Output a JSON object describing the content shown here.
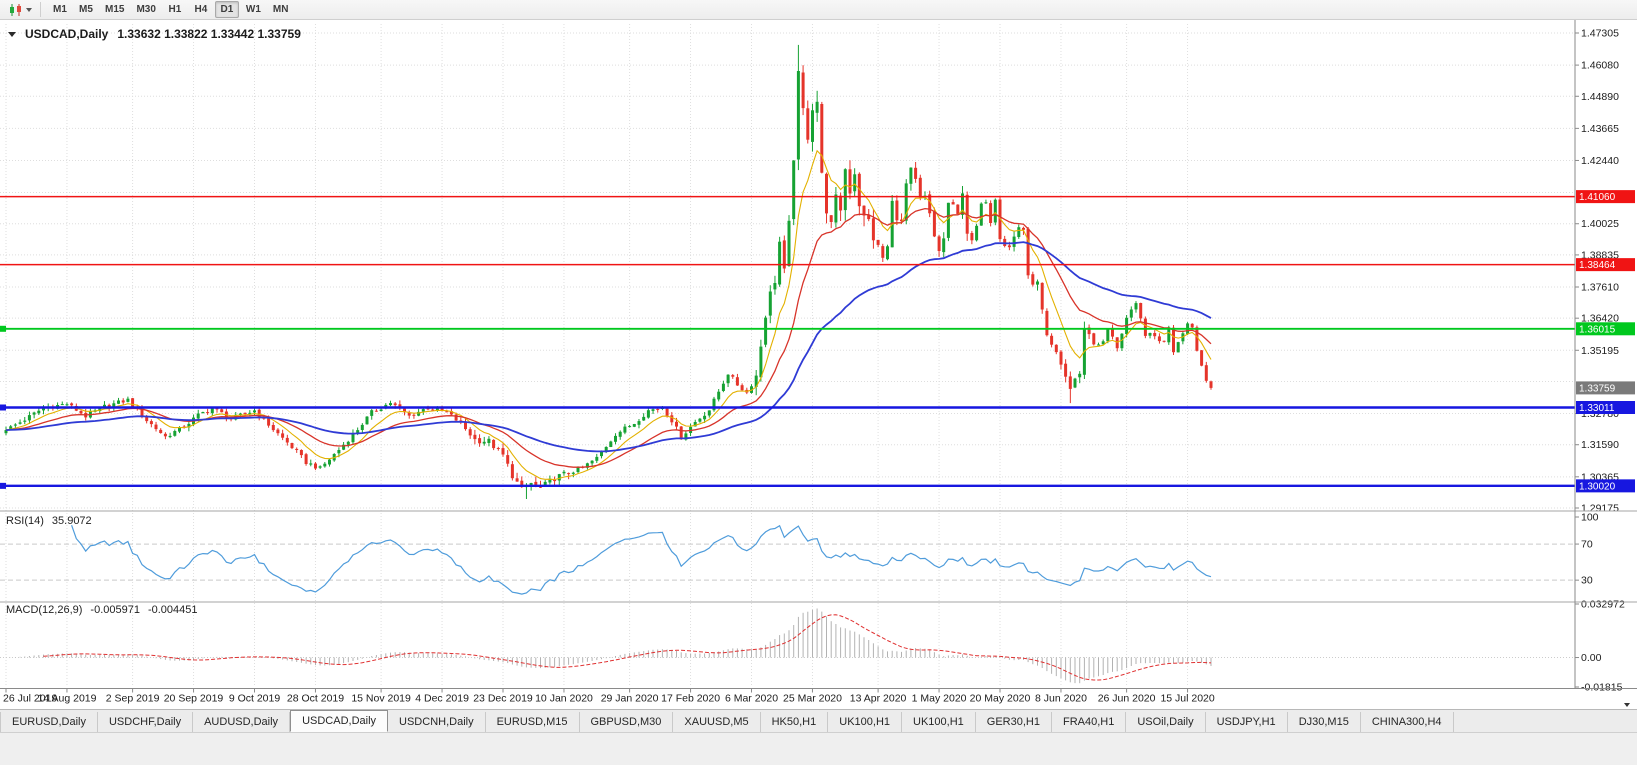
{
  "toolbar": {
    "timeframes": [
      {
        "label": "M1",
        "active": false
      },
      {
        "label": "M5",
        "active": false
      },
      {
        "label": "M15",
        "active": false
      },
      {
        "label": "M30",
        "active": false
      },
      {
        "label": "H1",
        "active": false
      },
      {
        "label": "H4",
        "active": false
      },
      {
        "label": "D1",
        "active": true
      },
      {
        "label": "W1",
        "active": false
      },
      {
        "label": "MN",
        "active": false
      }
    ]
  },
  "chart": {
    "symbol_title": "USDCAD,Daily",
    "ohlc_text": "1.33632 1.33822 1.33442 1.33759",
    "open": "1.33632",
    "high": "1.33822",
    "low": "1.33442",
    "close": "1.33759"
  },
  "indicators": {
    "rsi": {
      "label": "RSI(14)",
      "value": "35.9072",
      "line_color": "#4f9cdb",
      "levels": [
        {
          "label": "100",
          "value": 100
        },
        {
          "label": "70",
          "value": 70
        },
        {
          "label": "30",
          "value": 30
        }
      ]
    },
    "macd": {
      "label": "MACD(12,26,9)",
      "value_main": "-0.005971",
      "value_signal": "-0.004451",
      "hist_color": "#b2b2b2",
      "signal_color": "#e03131",
      "axis": [
        {
          "label": "0.032972",
          "value": 0.032972
        },
        {
          "label": "0.00",
          "value": 0
        },
        {
          "label": "-0.01815",
          "value": -0.01815
        }
      ]
    }
  },
  "chart_data": {
    "type": "candlestick",
    "symbol": "USDCAD",
    "timeframe": "Daily",
    "title": "USDCAD,Daily",
    "x_labels": [
      "26 Jul 2019",
      "14 Aug 2019",
      "2 Sep 2019",
      "20 Sep 2019",
      "9 Oct 2019",
      "28 Oct 2019",
      "15 Nov 2019",
      "4 Dec 2019",
      "23 Dec 2019",
      "10 Jan 2020",
      "29 Jan 2020",
      "17 Feb 2020",
      "6 Mar 2020",
      "25 Mar 2020",
      "13 Apr 2020",
      "1 May 2020",
      "20 May 2020",
      "8 Jun 2020",
      "26 Jun 2020",
      "15 Jul 2020"
    ],
    "y_axis_ticks": [
      "1.47305",
      "1.46080",
      "1.44890",
      "1.43665",
      "1.42440",
      "1.40025",
      "1.38835",
      "1.37610",
      "1.36420",
      "1.35195",
      "1.32780",
      "1.31590",
      "1.30365",
      "1.29175"
    ],
    "hidden_grid_ticks": [
      1.41215,
      1.34005
    ],
    "price_min": 1.29175,
    "price_max": 1.47305,
    "num_bars": 258,
    "anchors": [
      [
        0,
        1.3215
      ],
      [
        4,
        1.3255
      ],
      [
        8,
        1.33
      ],
      [
        13,
        1.3315
      ],
      [
        17,
        1.3268
      ],
      [
        21,
        1.3305
      ],
      [
        26,
        1.333
      ],
      [
        30,
        1.3252
      ],
      [
        34,
        1.319
      ],
      [
        38,
        1.3228
      ],
      [
        41,
        1.3272
      ],
      [
        44,
        1.33
      ],
      [
        48,
        1.3258
      ],
      [
        53,
        1.329
      ],
      [
        57,
        1.3218
      ],
      [
        61,
        1.315
      ],
      [
        64,
        1.3092
      ],
      [
        67,
        1.3068
      ],
      [
        71,
        1.314
      ],
      [
        75,
        1.3218
      ],
      [
        78,
        1.3282
      ],
      [
        82,
        1.332
      ],
      [
        86,
        1.3268
      ],
      [
        90,
        1.3302
      ],
      [
        94,
        1.3282
      ],
      [
        97,
        1.324
      ],
      [
        100,
        1.3178
      ],
      [
        103,
        1.3172
      ],
      [
        106,
        1.3118
      ],
      [
        108,
        1.3042
      ],
      [
        110,
        1.2986
      ],
      [
        112,
        1.3012
      ],
      [
        114,
        1.2992
      ],
      [
        117,
        1.3032
      ],
      [
        120,
        1.3052
      ],
      [
        123,
        1.3072
      ],
      [
        126,
        1.3108
      ],
      [
        130,
        1.32
      ],
      [
        134,
        1.3242
      ],
      [
        137,
        1.329
      ],
      [
        140,
        1.3302
      ],
      [
        142,
        1.3252
      ],
      [
        144,
        1.3188
      ],
      [
        147,
        1.3246
      ],
      [
        150,
        1.3292
      ],
      [
        152,
        1.3362
      ],
      [
        154,
        1.3432
      ],
      [
        156,
        1.3388
      ],
      [
        158,
        1.3358
      ],
      [
        160,
        1.3422
      ],
      [
        161,
        1.354
      ],
      [
        162,
        1.3662
      ],
      [
        163,
        1.373
      ],
      [
        164,
        1.3792
      ],
      [
        165,
        1.3932
      ],
      [
        166,
        1.3812
      ],
      [
        167,
        1.3992
      ],
      [
        168,
        1.4262
      ],
      [
        169,
        1.4562
      ],
      [
        170,
        1.4432
      ],
      [
        171,
        1.4342
      ],
      [
        172,
        1.4452
      ],
      [
        173,
        1.4472
      ],
      [
        174,
        1.4182
      ],
      [
        175,
        1.4062
      ],
      [
        176,
        1.3992
      ],
      [
        177,
        1.4092
      ],
      [
        178,
        1.4062
      ],
      [
        179,
        1.4212
      ],
      [
        180,
        1.4132
      ],
      [
        181,
        1.4202
      ],
      [
        182,
        1.4082
      ],
      [
        183,
        1.4022
      ],
      [
        184,
        1.4012
      ],
      [
        185,
        1.3952
      ],
      [
        187,
        1.3872
      ],
      [
        188,
        1.3912
      ],
      [
        189,
        1.4082
      ],
      [
        190,
        1.4032
      ],
      [
        191,
        1.4002
      ],
      [
        192,
        1.4152
      ],
      [
        193,
        1.4202
      ],
      [
        194,
        1.4162
      ],
      [
        195,
        1.4092
      ],
      [
        196,
        1.4102
      ],
      [
        197,
        1.4032
      ],
      [
        198,
        1.3952
      ],
      [
        199,
        1.3902
      ],
      [
        200,
        1.3942
      ],
      [
        201,
        1.4082
      ],
      [
        202,
        1.4062
      ],
      [
        203,
        1.4032
      ],
      [
        204,
        1.4132
      ],
      [
        205,
        1.3972
      ],
      [
        206,
        1.3932
      ],
      [
        207,
        1.3992
      ],
      [
        208,
        1.4072
      ],
      [
        209,
        1.4092
      ],
      [
        210,
        1.4012
      ],
      [
        211,
        1.4102
      ],
      [
        212,
        1.3952
      ],
      [
        213,
        1.3922
      ],
      [
        214,
        1.3912
      ],
      [
        215,
        1.3952
      ],
      [
        216,
        1.3992
      ],
      [
        217,
        1.3982
      ],
      [
        218,
        1.3792
      ],
      [
        220,
        1.3772
      ],
      [
        222,
        1.3562
      ],
      [
        224,
        1.3502
      ],
      [
        226,
        1.3422
      ],
      [
        227,
        1.3372
      ],
      [
        228,
        1.3412
      ],
      [
        229,
        1.3422
      ],
      [
        230,
        1.3612
      ],
      [
        232,
        1.3545
      ],
      [
        234,
        1.3548
      ],
      [
        235,
        1.3602
      ],
      [
        237,
        1.3532
      ],
      [
        239,
        1.3642
      ],
      [
        241,
        1.3692
      ],
      [
        243,
        1.3582
      ],
      [
        245,
        1.3572
      ],
      [
        247,
        1.3548
      ],
      [
        248,
        1.3612
      ],
      [
        249,
        1.3518
      ],
      [
        251,
        1.3592
      ],
      [
        252,
        1.3622
      ],
      [
        253,
        1.3612
      ],
      [
        254,
        1.3518
      ],
      [
        255,
        1.3462
      ],
      [
        256,
        1.3412
      ],
      [
        257,
        1.33759
      ]
    ],
    "wick_overrides": [
      {
        "bar": 169,
        "high": 1.4685
      },
      {
        "bar": 111,
        "low": 1.2952
      },
      {
        "bar": 227,
        "low": 1.3318
      }
    ],
    "price_lines": [
      {
        "label": "1.41060",
        "value": 1.4106,
        "color": "#f01414",
        "width": 1.6,
        "handle": false
      },
      {
        "label": "1.38464",
        "value": 1.38464,
        "color": "#f01414",
        "width": 1.6,
        "handle": false
      },
      {
        "label": "1.36015",
        "value": 1.36015,
        "color": "#00c81e",
        "width": 1.8,
        "handle": true
      },
      {
        "label": "1.33011",
        "value": 1.33011,
        "color": "#1717e0",
        "width": 2.4,
        "handle": true
      },
      {
        "label": "1.30020",
        "value": 1.3002,
        "color": "#1717e0",
        "width": 2.4,
        "handle": true
      }
    ],
    "current_price": {
      "label": "1.33759",
      "value": 1.33759,
      "badge_color": "#7a7a7a"
    },
    "moving_averages": [
      {
        "name": "fast",
        "type": "ema",
        "period": 8,
        "color": "#e3b100",
        "width": 1.1
      },
      {
        "name": "medium",
        "type": "ema",
        "period": 21,
        "color": "#d8342a",
        "width": 1.3
      },
      {
        "name": "slow",
        "type": "ema",
        "period": 55,
        "color": "#2f3bd5",
        "width": 1.8
      }
    ],
    "colors": {
      "up": "#16a233",
      "down": "#e5342a",
      "grid": "#dedede",
      "axis_text": "#1c1c1c",
      "separator": "#a6a6a6",
      "axis_line": "#8a8a8a"
    },
    "rsi_period": 14,
    "macd_params": [
      12,
      26,
      9
    ]
  },
  "tabs": {
    "items": [
      "EURUSD,Daily",
      "USDCHF,Daily",
      "AUDUSD,Daily",
      "USDCAD,Daily",
      "USDCNH,Daily",
      "EURUSD,M15",
      "GBPUSD,M30",
      "XAUUSD,M5",
      "HK50,H1",
      "UK100,H1",
      "UK100,H1",
      "GER30,H1",
      "FRA40,H1",
      "USOil,Daily",
      "USDJPY,H1",
      "DJ30,M15",
      "CHINA300,H4"
    ],
    "active_index": 3
  }
}
